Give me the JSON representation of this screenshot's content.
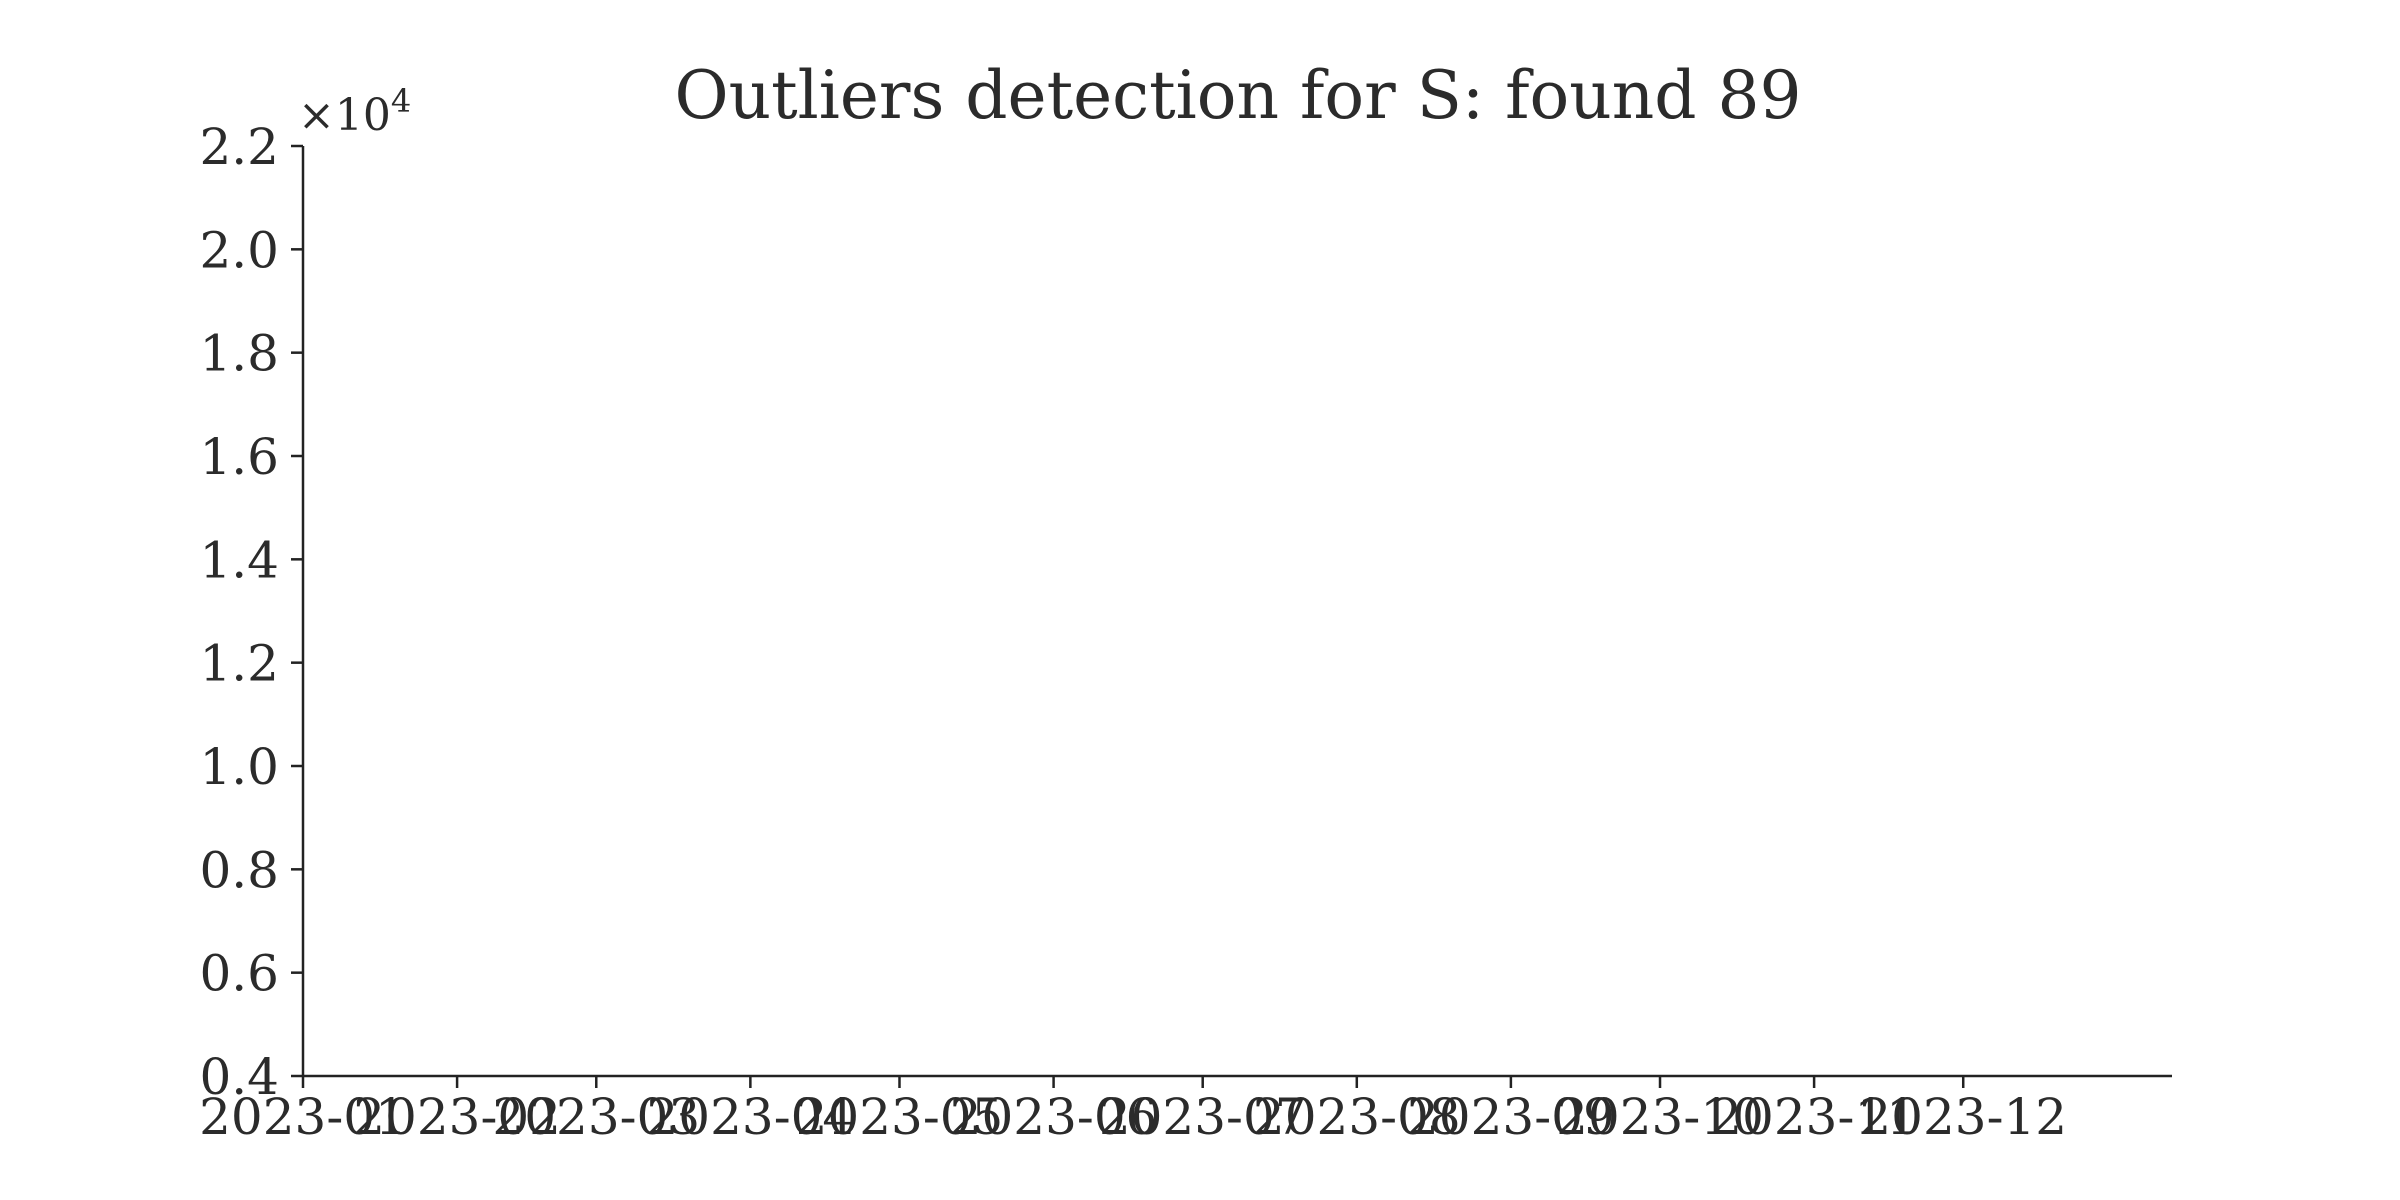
{
  "chart_data": {
    "type": "scatter",
    "title": "Outliers detection for S: found 89",
    "xlabel": "",
    "ylabel": "",
    "x_ticks": [
      "2023-01",
      "2023-02",
      "2023-03",
      "2023-04",
      "2023-05",
      "2023-06",
      "2023-07",
      "2023-08",
      "2023-09",
      "2023-10",
      "2023-11",
      "2023-12"
    ],
    "xlim": [
      "2023-01-01",
      "2024-01-12"
    ],
    "y_ticks": [
      "0.4",
      "0.6",
      "0.8",
      "1.0",
      "1.2",
      "1.4",
      "1.6",
      "1.8",
      "2.0",
      "2.2"
    ],
    "ylim": [
      4000,
      22000
    ],
    "y_offset_text": "×10",
    "y_offset_exponent": "4",
    "grid": false,
    "series": []
  },
  "colors": {
    "text": "#2b2b2b",
    "axis": "#222222",
    "background": "#ffffff"
  }
}
